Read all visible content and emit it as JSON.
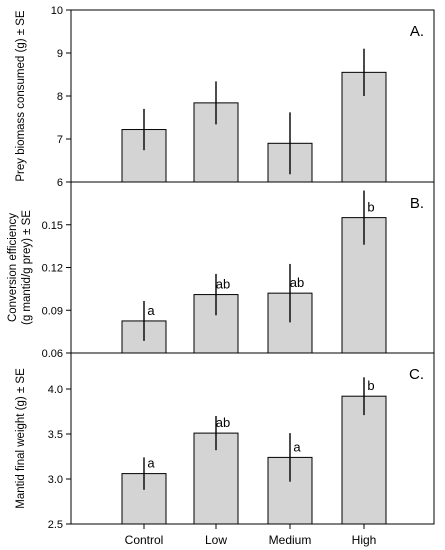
{
  "categories": [
    "Control",
    "Low",
    "Medium",
    "High"
  ],
  "colors": {
    "bar_fill": "#d4d4d4",
    "bar_stroke": "#000000",
    "axis": "#000000"
  },
  "chart_data": [
    {
      "type": "bar",
      "panel_label": "A.",
      "ylabel_lines": [
        "Prey biomass consumed (g) ± SE"
      ],
      "ylim": [
        6,
        10
      ],
      "yticks": [
        6,
        7,
        8,
        9,
        10
      ],
      "tick_labels": [
        "6",
        "7",
        "8",
        "9",
        "10"
      ],
      "values": [
        7.22,
        7.84,
        6.9,
        8.55
      ],
      "errors": [
        0.48,
        0.5,
        0.72,
        0.55
      ],
      "sig_letters": [
        "",
        "",
        "",
        ""
      ]
    },
    {
      "type": "bar",
      "panel_label": "B.",
      "ylabel_lines": [
        "Conversion efficiency",
        "(g mantid/g prey) ± SE"
      ],
      "ylim": [
        0.06,
        0.18
      ],
      "yticks": [
        0.06,
        0.09,
        0.12,
        0.15
      ],
      "tick_labels": [
        "0.06",
        "0.09",
        "0.12",
        "0.15"
      ],
      "values": [
        0.0825,
        0.101,
        0.102,
        0.155
      ],
      "errors": [
        0.014,
        0.0145,
        0.0205,
        0.019
      ],
      "sig_letters": [
        "a",
        "ab",
        "ab",
        "b"
      ]
    },
    {
      "type": "bar",
      "panel_label": "C.",
      "ylabel_lines": [
        "Mantid final weight (g) ± SE"
      ],
      "ylim": [
        2.5,
        4.4
      ],
      "yticks": [
        2.5,
        3.0,
        3.5,
        4.0
      ],
      "tick_labels": [
        "2.5",
        "3.0",
        "3.5",
        "4.0"
      ],
      "values": [
        3.06,
        3.51,
        3.24,
        3.92
      ],
      "errors": [
        0.18,
        0.19,
        0.27,
        0.21
      ],
      "sig_letters": [
        "a",
        "ab",
        "a",
        "b"
      ]
    }
  ]
}
